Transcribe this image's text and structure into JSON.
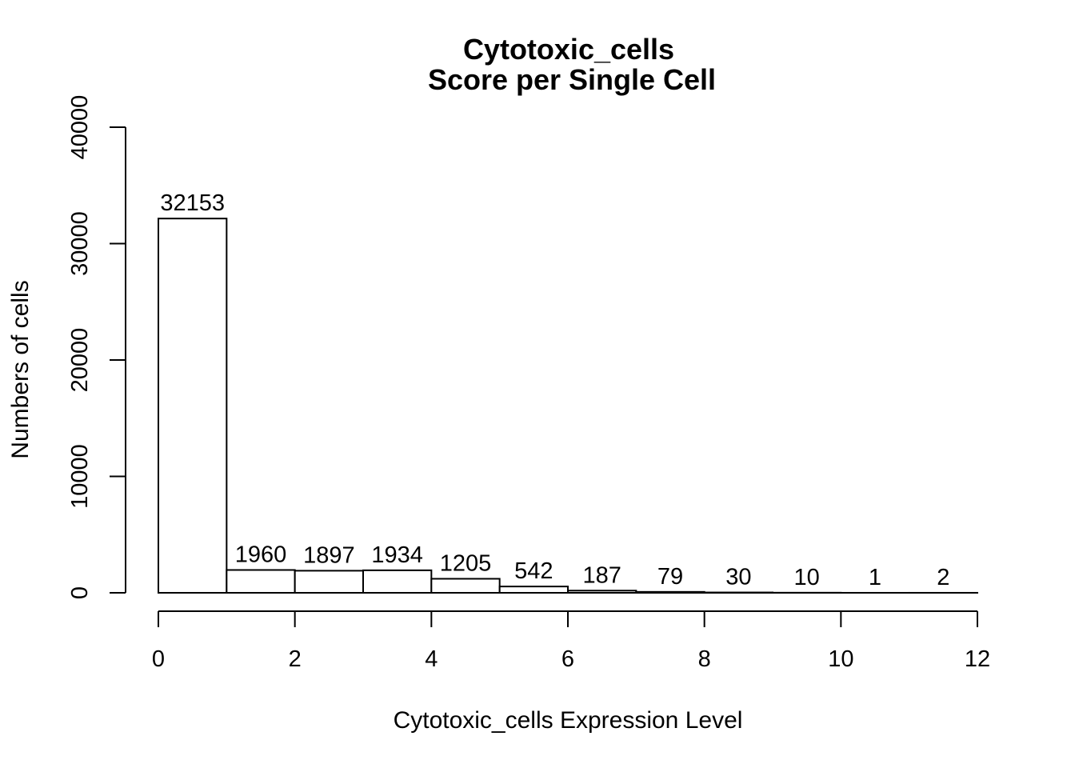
{
  "chart_data": {
    "type": "bar",
    "title": "Cytotoxic_cells",
    "subtitle": "Score per Single Cell",
    "xlabel": "Cytotoxic_cells Expression Level",
    "ylabel": "Numbers of cells",
    "bin_edges": [
      0,
      1,
      2,
      3,
      4,
      5,
      6,
      7,
      8,
      9,
      10,
      11,
      12
    ],
    "values": [
      32153,
      1960,
      1897,
      1934,
      1205,
      542,
      187,
      79,
      30,
      10,
      1,
      2
    ],
    "data_labels": [
      "32153",
      "1960",
      "1897",
      "1934",
      "1205",
      "542",
      "187",
      "79",
      "30",
      "10",
      "1",
      "2"
    ],
    "xlim": [
      0,
      12
    ],
    "ylim": [
      0,
      40000
    ],
    "x_ticks": [
      0,
      2,
      4,
      6,
      8,
      10,
      12
    ],
    "x_tick_labels": [
      "0",
      "2",
      "4",
      "6",
      "8",
      "10",
      "12"
    ],
    "y_ticks": [
      0,
      10000,
      20000,
      30000,
      40000
    ],
    "y_tick_labels": [
      "0",
      "10000",
      "20000",
      "30000",
      "40000"
    ],
    "grid": false,
    "bar_fill": "#ffffff",
    "bar_stroke": "#000000"
  }
}
